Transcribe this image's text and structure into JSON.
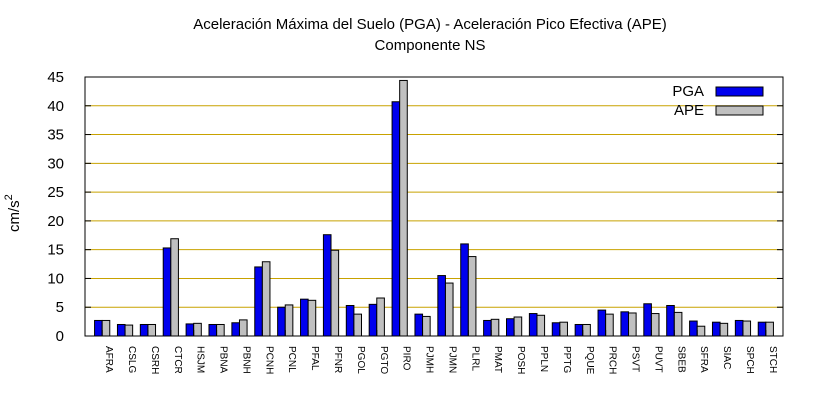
{
  "chart_data": {
    "type": "bar",
    "title": "Aceleración Máxima del Suelo (PGA) -  Aceleración Pico Efectiva (APE)",
    "subtitle": "Componente NS",
    "ylabel_base": "cm/s",
    "ylabel_exp": "2",
    "ylim": [
      0,
      45
    ],
    "yticks": [
      0,
      5,
      10,
      15,
      20,
      25,
      30,
      35,
      40,
      45
    ],
    "grid": true,
    "legend_position": "top-right",
    "categories": [
      "AFRA",
      "CSLG",
      "CSRH",
      "CTCR",
      "HSJM",
      "PBNA",
      "PBNH",
      "PCNH",
      "PCNL",
      "PFAL",
      "PFNR",
      "PGOL",
      "PGTO",
      "PIRO",
      "PJMH",
      "PJMN",
      "PLRL",
      "PMAT",
      "POSH",
      "PPLN",
      "PPTG",
      "PQUE",
      "PRCH",
      "PSVT",
      "PUVT",
      "SBEB",
      "SFRA",
      "SIAC",
      "SPCH",
      "STCH"
    ],
    "series": [
      {
        "name": "PGA",
        "color": "#0000ee",
        "values": [
          2.7,
          2.0,
          2.0,
          15.3,
          2.1,
          2.0,
          2.3,
          12.0,
          5.0,
          6.4,
          17.6,
          5.3,
          5.5,
          40.7,
          3.8,
          10.5,
          16.0,
          2.7,
          3.0,
          3.9,
          2.3,
          2.0,
          4.5,
          4.2,
          5.6,
          5.3,
          2.6,
          2.4,
          2.7,
          2.4
        ]
      },
      {
        "name": "APE",
        "color": "#c0c0c0",
        "values": [
          2.7,
          1.9,
          2.0,
          16.9,
          2.2,
          2.0,
          2.8,
          12.9,
          5.4,
          6.2,
          14.9,
          3.8,
          6.6,
          44.4,
          3.4,
          9.2,
          13.8,
          2.9,
          3.3,
          3.6,
          2.4,
          2.0,
          3.8,
          4.0,
          3.9,
          4.1,
          1.7,
          2.2,
          2.6,
          2.4
        ]
      }
    ]
  }
}
